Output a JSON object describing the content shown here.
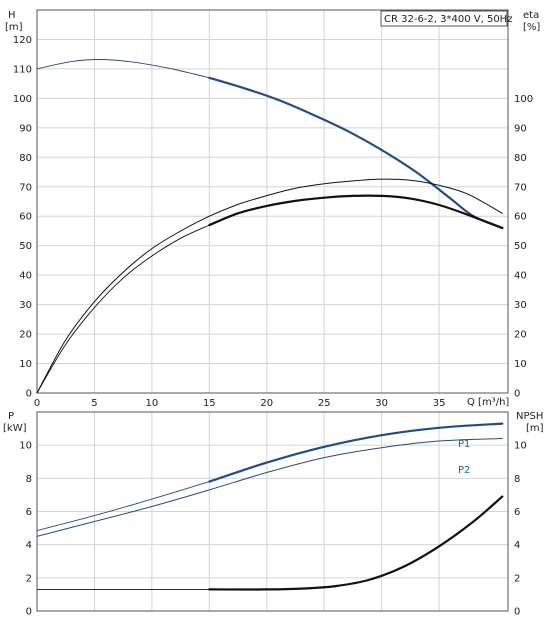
{
  "chart_data": [
    {
      "type": "line",
      "title": "CR 32-6-2, 3*400 V, 50Hz",
      "xlabel": "Q [m³/h]",
      "xlim": [
        0,
        41
      ],
      "xticks": [
        0,
        5,
        10,
        15,
        20,
        25,
        30,
        35
      ],
      "left_axis": {
        "label_line1": "H",
        "label_line2": "[m]",
        "ylim": [
          0,
          130
        ],
        "ticks": [
          0,
          10,
          20,
          30,
          40,
          50,
          60,
          70,
          80,
          90,
          100,
          110,
          120
        ]
      },
      "right_axis": {
        "label_line1": "eta",
        "label_line2": "[%]",
        "ylim": [
          0,
          130
        ],
        "ticks": [
          0,
          10,
          20,
          30,
          40,
          50,
          60,
          70,
          80,
          90,
          100
        ]
      },
      "grid": true,
      "series": [
        {
          "axis": "left",
          "color": "#1f4e86",
          "thin_x": [
            0,
            3,
            5.5,
            8,
            10,
            12,
            15
          ],
          "thin_y": [
            110,
            112.5,
            113.2,
            112.5,
            111.3,
            109.8,
            107
          ],
          "x": [
            15,
            18,
            21,
            24,
            27,
            30,
            33,
            36,
            38,
            40.5
          ],
          "y": [
            107,
            103.5,
            99.5,
            94.5,
            89,
            82.5,
            75,
            66,
            60,
            56
          ]
        },
        {
          "axis": "right",
          "color": "#111111",
          "x": [
            0,
            2.5,
            5,
            7.5,
            10,
            12.5,
            15,
            17.5,
            20,
            22.5,
            25,
            27.5,
            30,
            32.5,
            35,
            37.5,
            40.5
          ],
          "y": [
            0,
            18,
            31,
            41,
            49,
            55,
            60,
            64,
            67,
            69.5,
            71,
            72,
            72.6,
            72.2,
            70.5,
            67.5,
            61
          ]
        },
        {
          "axis": "right",
          "color": "#111111",
          "thin_x": [
            0,
            2.5,
            5,
            7.5,
            10,
            12.5,
            15
          ],
          "thin_y": [
            0,
            16.5,
            29,
            39,
            46.5,
            52.5,
            57
          ],
          "x": [
            15,
            17.5,
            20,
            22.5,
            25,
            27.5,
            30,
            32.5,
            35,
            37.5,
            40.5
          ],
          "y": [
            57,
            61,
            63.5,
            65.2,
            66.3,
            66.9,
            66.9,
            66,
            63.8,
            60.5,
            56
          ]
        }
      ]
    },
    {
      "type": "line",
      "xlim": [
        0,
        41
      ],
      "xticks": [],
      "left_axis": {
        "label_line1": "P",
        "label_line2": "[kW]",
        "ylim": [
          0,
          12
        ],
        "ticks": [
          0,
          2,
          4,
          6,
          8,
          10
        ]
      },
      "right_axis": {
        "label_line1": "NPSH",
        "label_line2": "[m]",
        "ylim": [
          0,
          12
        ],
        "ticks": [
          0,
          2,
          4,
          6,
          8,
          10
        ]
      },
      "grid": true,
      "series": [
        {
          "name": "P1",
          "axis": "left",
          "color": "#1f4e86",
          "thin_x": [
            0,
            5,
            10,
            15
          ],
          "thin_y": [
            4.85,
            5.75,
            6.75,
            7.8
          ],
          "x": [
            15,
            20,
            25,
            30,
            35,
            40.5
          ],
          "y": [
            7.8,
            8.95,
            9.9,
            10.6,
            11.05,
            11.3
          ]
        },
        {
          "name": "P2",
          "axis": "left",
          "color": "#1f4e86",
          "x": [
            0,
            5,
            10,
            15,
            20,
            25,
            30,
            35,
            40.5
          ],
          "y": [
            4.5,
            5.4,
            6.3,
            7.3,
            8.35,
            9.25,
            9.85,
            10.25,
            10.4
          ]
        },
        {
          "axis": "right",
          "color": "#111111",
          "thin_x": [
            0,
            5,
            10,
            15
          ],
          "thin_y": [
            1.3,
            1.3,
            1.3,
            1.3
          ],
          "x": [
            15,
            20,
            23,
            26,
            29,
            32,
            35,
            38,
            40.5
          ],
          "y": [
            1.3,
            1.3,
            1.35,
            1.5,
            1.9,
            2.7,
            3.9,
            5.4,
            6.9
          ]
        }
      ]
    }
  ]
}
